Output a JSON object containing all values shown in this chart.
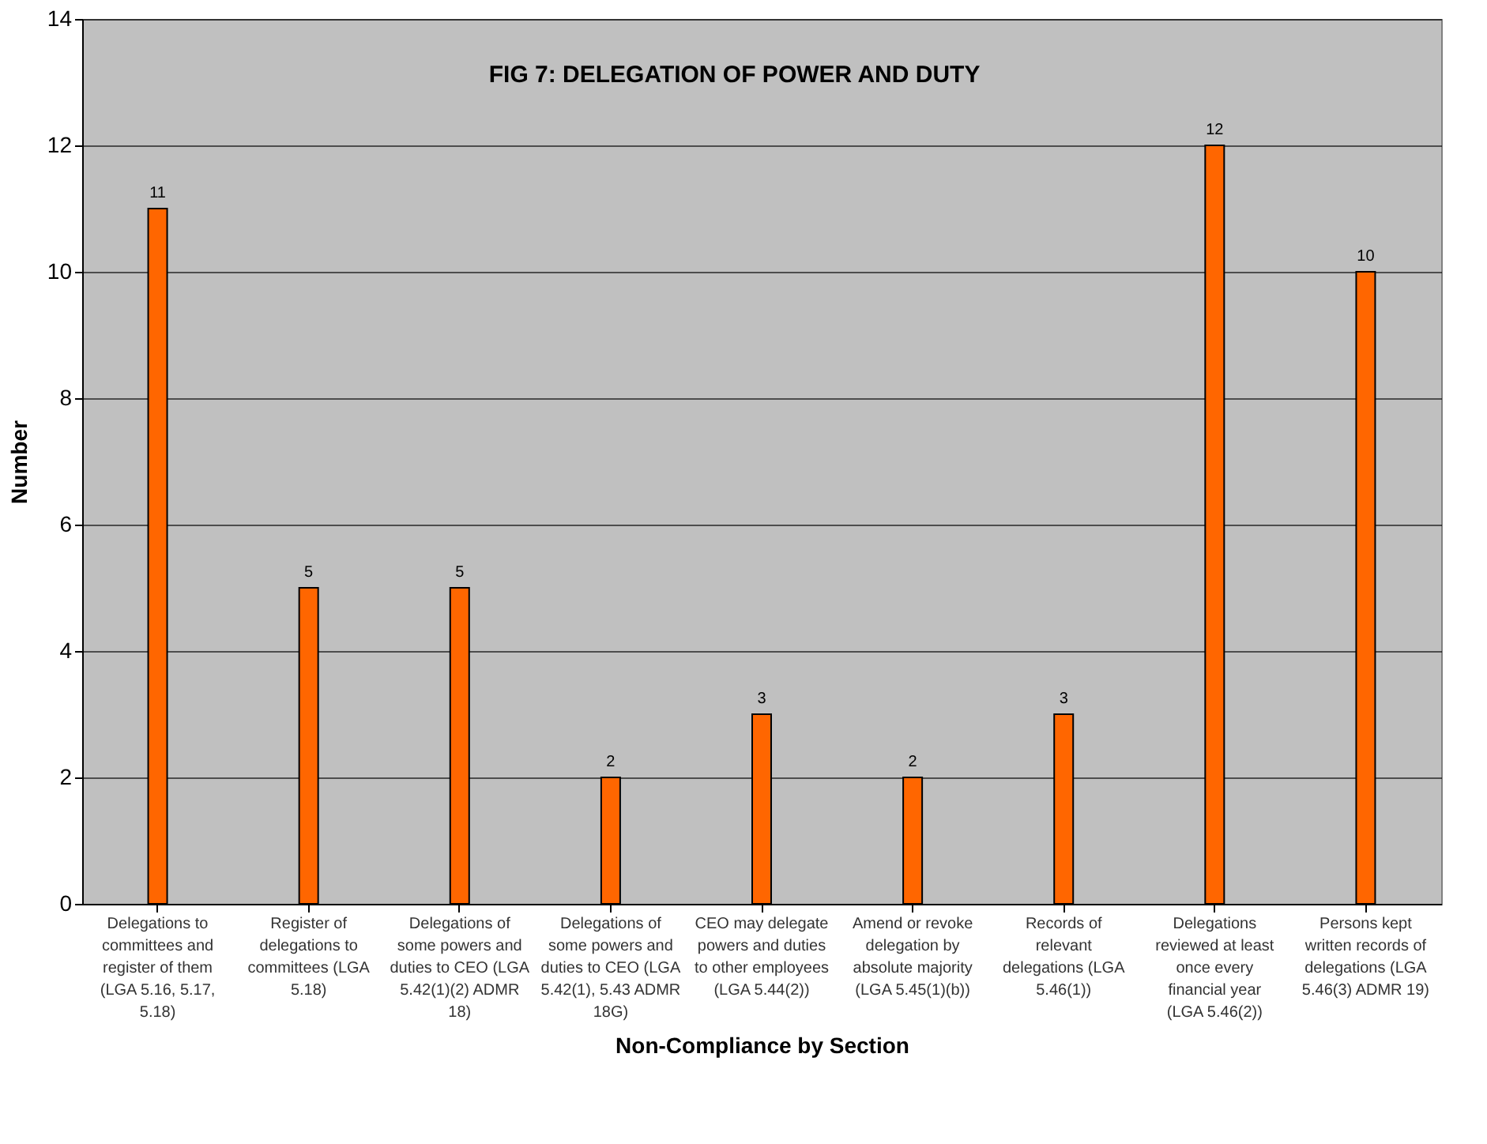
{
  "chart_data": {
    "type": "bar",
    "title": "FIG 7: DELEGATION OF POWER AND DUTY",
    "xlabel": "Non-Compliance by Section",
    "ylabel": "Number",
    "categories": [
      "Delegations to committees and register of them (LGA 5.16, 5.17, 5.18)",
      "Register of delegations to committees (LGA 5.18)",
      "Delegations of some powers and duties to CEO (LGA 5.42(1)(2) ADMR 18)",
      "Delegations of some powers and duties to CEO (LGA 5.42(1), 5.43 ADMR 18G)",
      "CEO may delegate powers and duties to other employees (LGA 5.44(2))",
      "Amend or revoke delegation by absolute majority (LGA 5.45(1)(b))",
      "Records of relevant delegations (LGA 5.46(1))",
      "Delegations reviewed at least once every financial year (LGA 5.46(2))",
      "Persons kept written records of delegations (LGA 5.46(3) ADMR 19)"
    ],
    "values": [
      11,
      5,
      5,
      2,
      3,
      2,
      3,
      12,
      10
    ],
    "color": "#ff6600",
    "ylim": [
      0,
      14
    ],
    "yticks": [
      0,
      2,
      4,
      6,
      8,
      10,
      12,
      14
    ],
    "grid": "y",
    "data_labels": true
  }
}
